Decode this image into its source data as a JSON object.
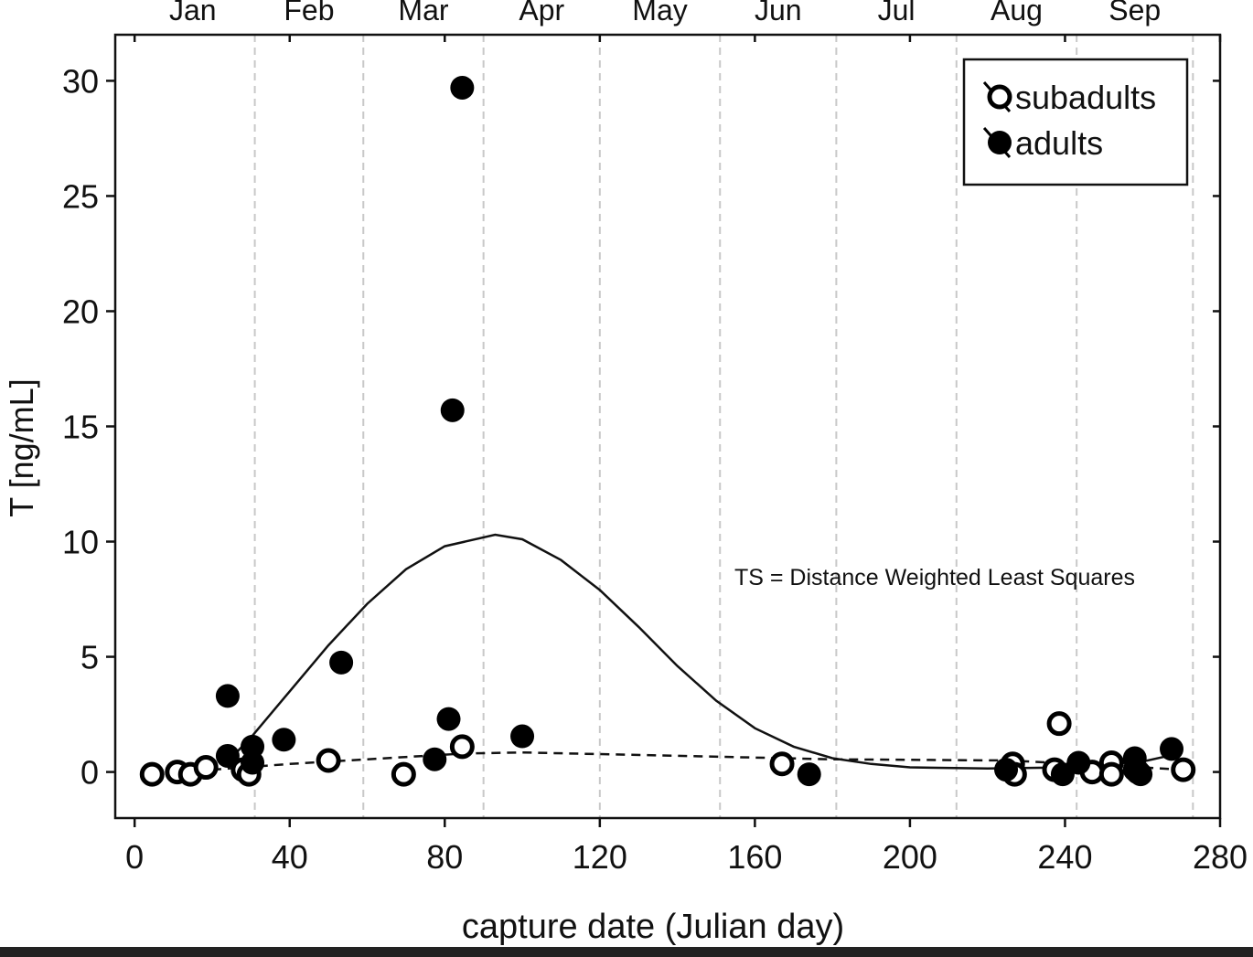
{
  "chart_data": {
    "type": "scatter",
    "xlabel": "capture date (Julian day)",
    "ylabel": "T [ng/mL]",
    "xlim": [
      -5,
      280
    ],
    "ylim": [
      -2,
      32
    ],
    "xticks": [
      0,
      40,
      80,
      120,
      160,
      200,
      240,
      280
    ],
    "yticks": [
      0,
      5,
      10,
      15,
      20,
      25,
      30
    ],
    "grid": "vertical dashed lines at month boundaries",
    "month_boundaries": [
      31,
      59,
      90,
      120,
      151,
      181,
      212,
      243,
      273
    ],
    "months": [
      {
        "label": "Jan",
        "center": 15
      },
      {
        "label": "Feb",
        "center": 45
      },
      {
        "label": "Mar",
        "center": 74.5
      },
      {
        "label": "Apr",
        "center": 105
      },
      {
        "label": "May",
        "center": 135.5
      },
      {
        "label": "Jun",
        "center": 166
      },
      {
        "label": "Jul",
        "center": 196.5
      },
      {
        "label": "Aug",
        "center": 227.5
      },
      {
        "label": "Sep",
        "center": 258
      }
    ],
    "annotation": "TS = Distance Weighted Least Squares",
    "legend_position": "top-right",
    "series": [
      {
        "name": "subadults",
        "marker": "open-circle",
        "fit": "dashed",
        "points": [
          [
            4.5,
            -0.1
          ],
          [
            11,
            0
          ],
          [
            14.4,
            -0.1
          ],
          [
            18.4,
            0.2
          ],
          [
            28,
            0.1
          ],
          [
            29.5,
            -0.1
          ],
          [
            50,
            0.5
          ],
          [
            69.4,
            -0.1
          ],
          [
            84.5,
            1.1
          ],
          [
            167,
            0.35
          ],
          [
            226.5,
            0.35
          ],
          [
            227,
            -0.1
          ],
          [
            237.3,
            0.1
          ],
          [
            238.5,
            2.1
          ],
          [
            247,
            0
          ],
          [
            252,
            0.4
          ],
          [
            252,
            -0.1
          ],
          [
            258.8,
            0
          ],
          [
            270.5,
            0.1
          ]
        ],
        "fit_points": [
          [
            4,
            -0.1
          ],
          [
            20,
            0.1
          ],
          [
            40,
            0.35
          ],
          [
            60,
            0.55
          ],
          [
            85,
            0.8
          ],
          [
            100,
            0.85
          ],
          [
            140,
            0.7
          ],
          [
            180,
            0.55
          ],
          [
            225,
            0.5
          ],
          [
            250,
            0.3
          ],
          [
            270,
            0.1
          ]
        ]
      },
      {
        "name": "adults",
        "marker": "filled-circle",
        "fit": "solid",
        "points": [
          [
            24,
            3.3
          ],
          [
            24,
            0.7
          ],
          [
            30.4,
            1.1
          ],
          [
            30.4,
            0.4
          ],
          [
            38.5,
            1.4
          ],
          [
            53.3,
            4.75
          ],
          [
            77.4,
            0.55
          ],
          [
            81,
            2.3
          ],
          [
            82,
            15.7
          ],
          [
            84.5,
            29.7
          ],
          [
            100,
            1.55
          ],
          [
            174,
            -0.1
          ],
          [
            224.8,
            0.1
          ],
          [
            239.4,
            -0.1
          ],
          [
            243.5,
            0.4
          ],
          [
            258,
            0.6
          ],
          [
            258,
            0.1
          ],
          [
            259.5,
            -0.1
          ],
          [
            267.5,
            1.0
          ]
        ],
        "fit_points": [
          [
            26,
            0.8
          ],
          [
            30,
            1.5
          ],
          [
            40,
            3.5
          ],
          [
            50,
            5.5
          ],
          [
            60,
            7.3
          ],
          [
            70,
            8.8
          ],
          [
            80,
            9.8
          ],
          [
            93,
            10.3
          ],
          [
            100,
            10.1
          ],
          [
            110,
            9.2
          ],
          [
            120,
            7.9
          ],
          [
            130,
            6.3
          ],
          [
            140,
            4.6
          ],
          [
            150,
            3.1
          ],
          [
            160,
            1.9
          ],
          [
            170,
            1.1
          ],
          [
            180,
            0.6
          ],
          [
            190,
            0.35
          ],
          [
            200,
            0.2
          ],
          [
            220,
            0.15
          ],
          [
            240,
            0.2
          ],
          [
            260,
            0.45
          ],
          [
            268,
            0.75
          ]
        ]
      }
    ]
  }
}
